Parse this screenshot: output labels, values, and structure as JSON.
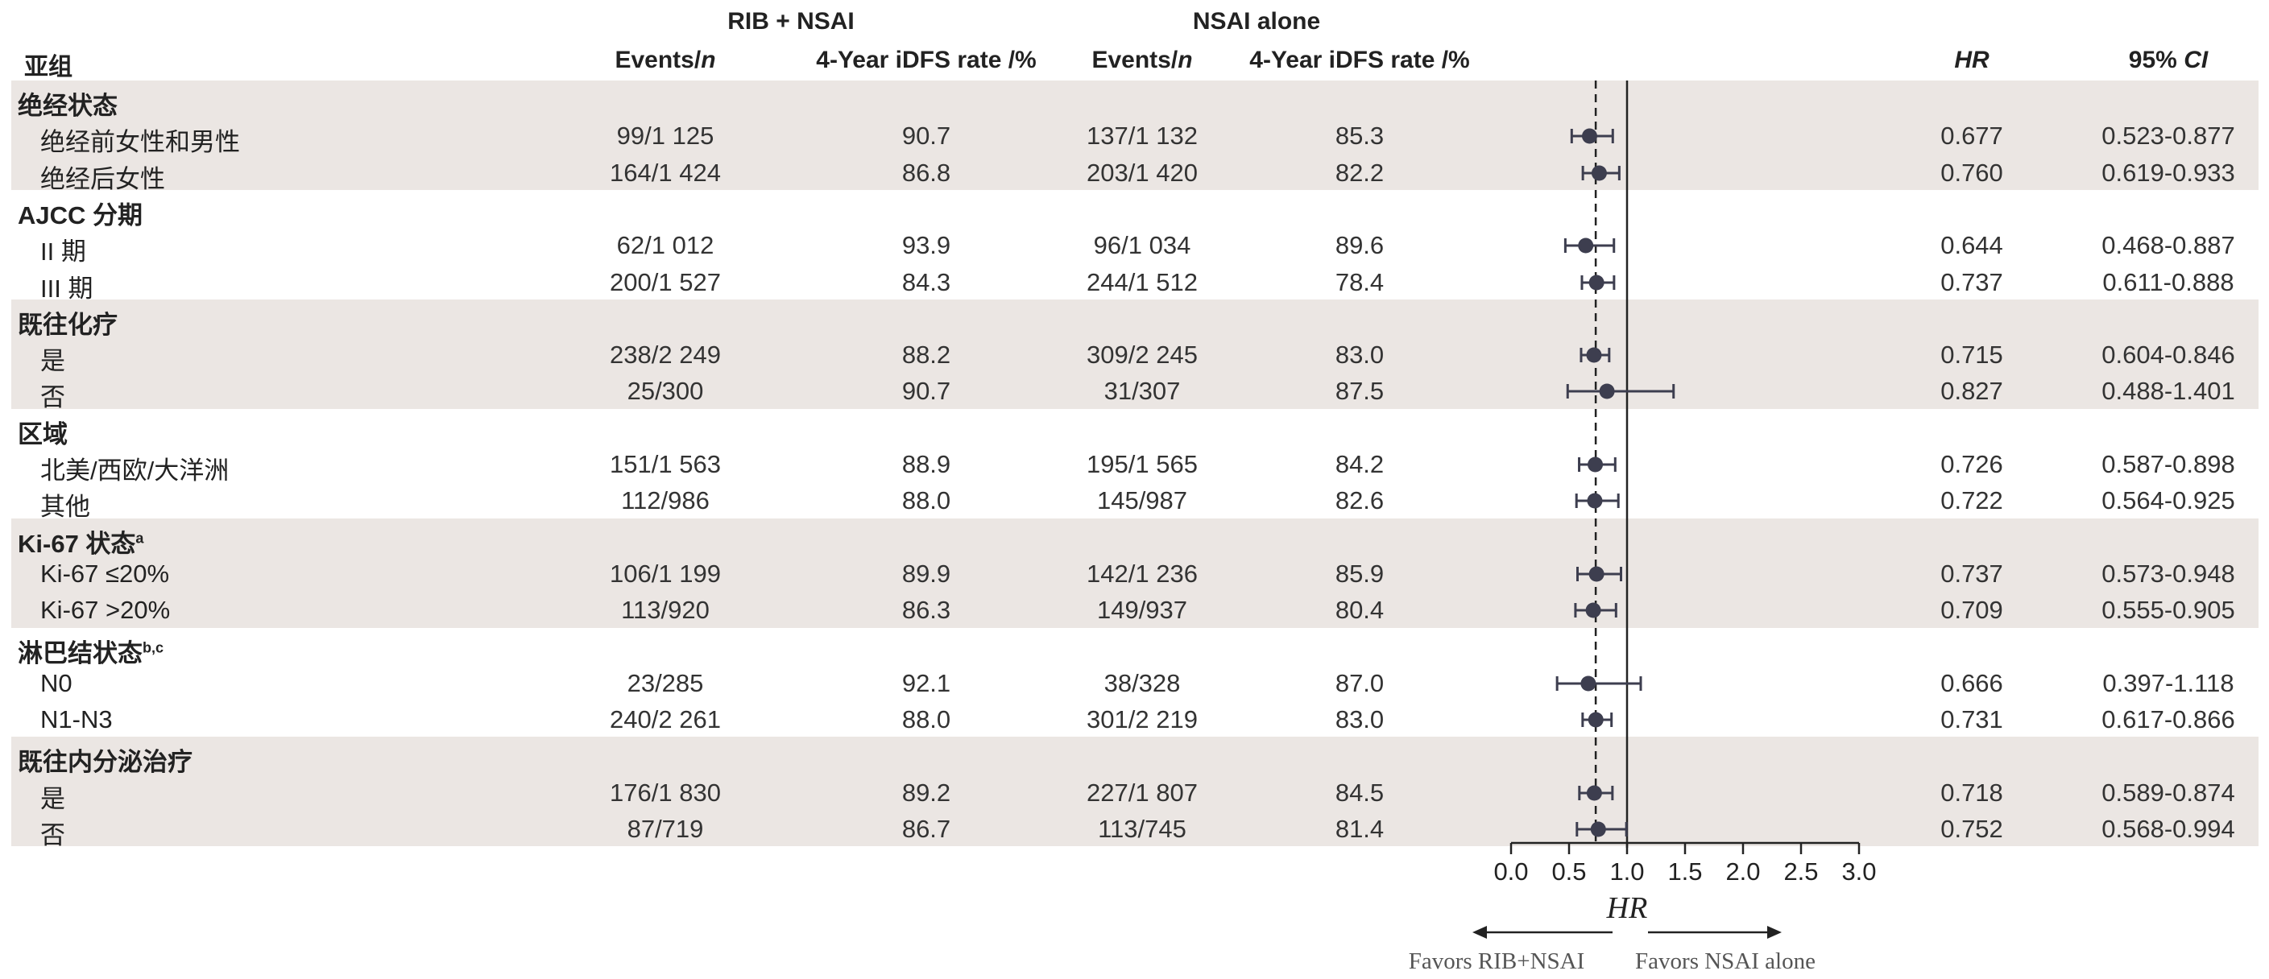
{
  "headers": {
    "subgroup": "亚组",
    "group_rib": "RIB + NSAI",
    "group_nsai": "NSAI alone",
    "events_prefix": "Events/",
    "events_n": "n",
    "rate": "4-Year iDFS rate /%",
    "hr": "HR",
    "ci_prefix": "95% ",
    "ci_italic": "CI"
  },
  "groups": [
    {
      "label": "绝经状态",
      "sup": "",
      "rows": [
        {
          "label": "绝经前女性和男性",
          "rib_events": "99/1 125",
          "rib_rate": "90.7",
          "nsai_events": "137/1 132",
          "nsai_rate": "85.3",
          "hr": "0.677",
          "ci": "0.523-0.877"
        },
        {
          "label": "绝经后女性",
          "rib_events": "164/1 424",
          "rib_rate": "86.8",
          "nsai_events": "203/1 420",
          "nsai_rate": "82.2",
          "hr": "0.760",
          "ci": "0.619-0.933"
        }
      ]
    },
    {
      "label": "AJCC 分期",
      "sup": "",
      "rows": [
        {
          "label": "II 期",
          "rib_events": "62/1 012",
          "rib_rate": "93.9",
          "nsai_events": "96/1 034",
          "nsai_rate": "89.6",
          "hr": "0.644",
          "ci": "0.468-0.887"
        },
        {
          "label": "III 期",
          "rib_events": "200/1 527",
          "rib_rate": "84.3",
          "nsai_events": "244/1 512",
          "nsai_rate": "78.4",
          "hr": "0.737",
          "ci": "0.611-0.888"
        }
      ]
    },
    {
      "label": "既往化疗",
      "sup": "",
      "rows": [
        {
          "label": "是",
          "rib_events": "238/2 249",
          "rib_rate": "88.2",
          "nsai_events": "309/2 245",
          "nsai_rate": "83.0",
          "hr": "0.715",
          "ci": "0.604-0.846"
        },
        {
          "label": "否",
          "rib_events": "25/300",
          "rib_rate": "90.7",
          "nsai_events": "31/307",
          "nsai_rate": "87.5",
          "hr": "0.827",
          "ci": "0.488-1.401"
        }
      ]
    },
    {
      "label": "区域",
      "sup": "",
      "rows": [
        {
          "label": "北美/西欧/大洋洲",
          "rib_events": "151/1 563",
          "rib_rate": "88.9",
          "nsai_events": "195/1 565",
          "nsai_rate": "84.2",
          "hr": "0.726",
          "ci": "0.587-0.898"
        },
        {
          "label": "其他",
          "rib_events": "112/986",
          "rib_rate": "88.0",
          "nsai_events": "145/987",
          "nsai_rate": "82.6",
          "hr": "0.722",
          "ci": "0.564-0.925"
        }
      ]
    },
    {
      "label": "Ki-67 状态",
      "sup": "a",
      "rows": [
        {
          "label": "Ki-67 ≤20%",
          "rib_events": "106/1 199",
          "rib_rate": "89.9",
          "nsai_events": "142/1 236",
          "nsai_rate": "85.9",
          "hr": "0.737",
          "ci": "0.573-0.948"
        },
        {
          "label": "Ki-67 >20%",
          "rib_events": "113/920",
          "rib_rate": "86.3",
          "nsai_events": "149/937",
          "nsai_rate": "80.4",
          "hr": "0.709",
          "ci": "0.555-0.905"
        }
      ]
    },
    {
      "label": "淋巴结状态",
      "sup": "b,c",
      "rows": [
        {
          "label": "N0",
          "rib_events": "23/285",
          "rib_rate": "92.1",
          "nsai_events": "38/328",
          "nsai_rate": "87.0",
          "hr": "0.666",
          "ci": "0.397-1.118"
        },
        {
          "label": "N1-N3",
          "rib_events": "240/2 261",
          "rib_rate": "88.0",
          "nsai_events": "301/2 219",
          "nsai_rate": "83.0",
          "hr": "0.731",
          "ci": "0.617-0.866"
        }
      ]
    },
    {
      "label": "既往内分泌治疗",
      "sup": "",
      "rows": [
        {
          "label": "是",
          "rib_events": "176/1 830",
          "rib_rate": "89.2",
          "nsai_events": "227/1 807",
          "nsai_rate": "84.5",
          "hr": "0.718",
          "ci": "0.589-0.874"
        },
        {
          "label": "否",
          "rib_events": "87/719",
          "rib_rate": "86.7",
          "nsai_events": "113/745",
          "nsai_rate": "81.4",
          "hr": "0.752",
          "ci": "0.568-0.994"
        }
      ]
    }
  ],
  "chart_data": {
    "type": "forest",
    "xlabel": "HR",
    "xlim": [
      0.0,
      3.0
    ],
    "xticks": [
      "0.0",
      "0.5",
      "1.0",
      "1.5",
      "2.0",
      "2.5",
      "3.0"
    ],
    "reference_line": 1.0,
    "overall_dashed_line": 0.73,
    "favors_left": "Favors RIB+NSAI",
    "favors_right": "Favors NSAI alone",
    "colors": {
      "marker": "#3d3e4f",
      "band": "#ebe6e3",
      "text": "#2b2b2b"
    },
    "points": [
      {
        "label": "绝经前女性和男性",
        "hr": 0.677,
        "lo": 0.523,
        "hi": 0.877
      },
      {
        "label": "绝经后女性",
        "hr": 0.76,
        "lo": 0.619,
        "hi": 0.933
      },
      {
        "label": "II 期",
        "hr": 0.644,
        "lo": 0.468,
        "hi": 0.887
      },
      {
        "label": "III 期",
        "hr": 0.737,
        "lo": 0.611,
        "hi": 0.888
      },
      {
        "label": "是",
        "hr": 0.715,
        "lo": 0.604,
        "hi": 0.846
      },
      {
        "label": "否",
        "hr": 0.827,
        "lo": 0.488,
        "hi": 1.401
      },
      {
        "label": "北美/西欧/大洋洲",
        "hr": 0.726,
        "lo": 0.587,
        "hi": 0.898
      },
      {
        "label": "其他",
        "hr": 0.722,
        "lo": 0.564,
        "hi": 0.925
      },
      {
        "label": "Ki-67 ≤20%",
        "hr": 0.737,
        "lo": 0.573,
        "hi": 0.948
      },
      {
        "label": "Ki-67 >20%",
        "hr": 0.709,
        "lo": 0.555,
        "hi": 0.905
      },
      {
        "label": "N0",
        "hr": 0.666,
        "lo": 0.397,
        "hi": 1.118
      },
      {
        "label": "N1-N3",
        "hr": 0.731,
        "lo": 0.617,
        "hi": 0.866
      },
      {
        "label": "是",
        "hr": 0.718,
        "lo": 0.589,
        "hi": 0.874
      },
      {
        "label": "否",
        "hr": 0.752,
        "lo": 0.568,
        "hi": 0.994
      }
    ]
  }
}
